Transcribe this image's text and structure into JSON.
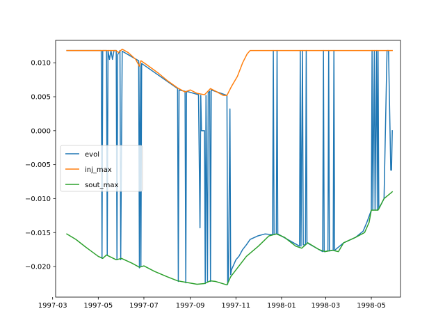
{
  "chart_data": {
    "type": "line",
    "title": "",
    "xlabel": "",
    "ylabel": "",
    "x_axis": "date",
    "xlim": [
      "1997-03-05",
      "1998-06-09"
    ],
    "ylim": [
      -0.0245,
      0.0133
    ],
    "grid": false,
    "legend_position": "center-left",
    "x_ticks": [
      "1997-03",
      "1997-05",
      "1997-07",
      "1997-09",
      "1997-11",
      "1998-01",
      "1998-03",
      "1998-05"
    ],
    "y_ticks": [
      0.01,
      0.005,
      0.0,
      -0.005,
      -0.01,
      -0.015,
      -0.02
    ],
    "y_tick_labels": [
      "0.010",
      "0.005",
      "0.000",
      "−0.005",
      "−0.010",
      "−0.015",
      "−0.020"
    ],
    "series": [
      {
        "name": "evol",
        "color": "#1f77b4",
        "points": [
          [
            "1997-03-20",
            0.0118
          ],
          [
            "1997-05-05",
            0.0118
          ],
          [
            "1997-05-06",
            -0.0188
          ],
          [
            "1997-05-07",
            0.0118
          ],
          [
            "1997-05-12",
            0.0118
          ],
          [
            "1997-05-13",
            -0.0183
          ],
          [
            "1997-05-14",
            0.0118
          ],
          [
            "1997-05-16",
            0.0105
          ],
          [
            "1997-05-18",
            0.0118
          ],
          [
            "1997-05-20",
            0.0105
          ],
          [
            "1997-05-22",
            0.0118
          ],
          [
            "1997-05-25",
            0.0118
          ],
          [
            "1997-05-26",
            -0.019
          ],
          [
            "1997-05-27",
            0.0112
          ],
          [
            "1997-05-30",
            0.0118
          ],
          [
            "1997-05-31",
            -0.019
          ],
          [
            "1997-06-02",
            0.0117
          ],
          [
            "1997-06-24",
            0.0103
          ],
          [
            "1997-06-25",
            -0.0202
          ],
          [
            "1997-06-26",
            0.01
          ],
          [
            "1997-06-27",
            -0.02
          ],
          [
            "1997-06-28",
            0.0099
          ],
          [
            "1997-08-15",
            0.0062
          ],
          [
            "1997-08-16",
            -0.0222
          ],
          [
            "1997-08-17",
            0.006
          ],
          [
            "1997-08-25",
            0.0058
          ],
          [
            "1997-08-26",
            -0.0224
          ],
          [
            "1997-08-27",
            0.0058
          ],
          [
            "1997-09-12",
            0.0053
          ],
          [
            "1997-09-14",
            -0.0143
          ],
          [
            "1997-09-15",
            0.0052
          ],
          [
            "1997-09-16",
            0.0
          ],
          [
            "1997-09-20",
            0.0
          ],
          [
            "1997-09-21",
            -0.0225
          ],
          [
            "1997-09-22",
            0.0052
          ],
          [
            "1997-09-24",
            -0.0222
          ],
          [
            "1997-09-25",
            0.0056
          ],
          [
            "1997-09-27",
            0.0058
          ],
          [
            "1997-09-28",
            -0.0222
          ],
          [
            "1997-09-29",
            0.006
          ],
          [
            "1997-10-20",
            0.0052
          ],
          [
            "1997-10-21",
            -0.0226
          ],
          [
            "1997-10-22",
            -0.0215
          ],
          [
            "1997-10-24",
            0.0032
          ],
          [
            "1997-10-25",
            -0.0212
          ],
          [
            "1997-10-26",
            -0.0205
          ],
          [
            "1997-11-01",
            -0.019
          ],
          [
            "1997-11-05",
            -0.0185
          ],
          [
            "1997-11-10",
            -0.0175
          ],
          [
            "1997-11-15",
            -0.0168
          ],
          [
            "1997-11-20",
            -0.016
          ],
          [
            "1997-11-30",
            -0.0155
          ],
          [
            "1997-12-10",
            -0.0152
          ],
          [
            "1997-12-20",
            -0.0153
          ],
          [
            "1997-12-21",
            0.0118
          ],
          [
            "1997-12-22",
            -0.0153
          ],
          [
            "1997-12-25",
            -0.0152
          ],
          [
            "1997-12-26",
            0.0118
          ],
          [
            "1997-12-27",
            -0.0152
          ],
          [
            "1998-01-25",
            -0.017
          ],
          [
            "1998-01-26",
            0.0118
          ],
          [
            "1998-01-27",
            -0.017
          ],
          [
            "1998-01-29",
            0.0118
          ],
          [
            "1998-01-30",
            -0.0168
          ],
          [
            "1998-02-02",
            -0.0168
          ],
          [
            "1998-02-03",
            0.0118
          ],
          [
            "1998-02-04",
            -0.0165
          ],
          [
            "1998-02-25",
            -0.0178
          ],
          [
            "1998-02-26",
            0.0118
          ],
          [
            "1998-02-27",
            -0.0178
          ],
          [
            "1998-03-04",
            -0.0177
          ],
          [
            "1998-03-05",
            0.0118
          ],
          [
            "1998-03-06",
            -0.0177
          ],
          [
            "1998-03-11",
            -0.0176
          ],
          [
            "1998-03-12",
            0.0118
          ],
          [
            "1998-03-13",
            -0.0176
          ],
          [
            "1998-03-25",
            -0.0165
          ],
          [
            "1998-04-10",
            -0.0157
          ],
          [
            "1998-04-20",
            -0.0148
          ],
          [
            "1998-04-25",
            -0.0135
          ],
          [
            "1998-05-01",
            -0.0117
          ],
          [
            "1998-05-02",
            0.0118
          ],
          [
            "1998-05-03",
            -0.0117
          ],
          [
            "1998-05-05",
            0.0118
          ],
          [
            "1998-05-06",
            -0.0117
          ],
          [
            "1998-05-08",
            0.0118
          ],
          [
            "1998-05-09",
            -0.0117
          ],
          [
            "1998-05-10",
            0.0118
          ],
          [
            "1998-05-11",
            -0.0115
          ],
          [
            "1998-05-18",
            -0.01
          ],
          [
            "1998-05-22",
            0.0118
          ],
          [
            "1998-05-24",
            0.0118
          ],
          [
            "1998-05-27",
            -0.0058
          ],
          [
            "1998-05-28",
            -0.0058
          ],
          [
            "1998-05-29",
            0.0
          ]
        ]
      },
      {
        "name": "inj_max",
        "color": "#ff7f0e",
        "points": [
          [
            "1997-03-20",
            0.0118
          ],
          [
            "1997-05-25",
            0.0118
          ],
          [
            "1997-05-28",
            0.0115
          ],
          [
            "1997-06-02",
            0.012
          ],
          [
            "1997-06-10",
            0.0115
          ],
          [
            "1997-06-20",
            0.0105
          ],
          [
            "1997-06-25",
            0.0095
          ],
          [
            "1997-06-27",
            0.0103
          ],
          [
            "1997-07-05",
            0.0097
          ],
          [
            "1997-07-20",
            0.0085
          ],
          [
            "1997-08-01",
            0.0074
          ],
          [
            "1997-08-15",
            0.0063
          ],
          [
            "1997-08-25",
            0.0057
          ],
          [
            "1997-09-01",
            0.006
          ],
          [
            "1997-09-10",
            0.0055
          ],
          [
            "1997-09-20",
            0.0053
          ],
          [
            "1997-09-28",
            0.0062
          ],
          [
            "1997-10-05",
            0.0058
          ],
          [
            "1997-10-15",
            0.0052
          ],
          [
            "1997-10-20",
            0.0052
          ],
          [
            "1997-10-26",
            0.0065
          ],
          [
            "1997-11-03",
            0.008
          ],
          [
            "1997-11-10",
            0.01
          ],
          [
            "1997-11-16",
            0.0113
          ],
          [
            "1997-11-20",
            0.0118
          ],
          [
            "1998-05-29",
            0.0118
          ]
        ]
      },
      {
        "name": "sout_max",
        "color": "#2ca02c",
        "points": [
          [
            "1997-03-20",
            -0.0152
          ],
          [
            "1997-04-01",
            -0.016
          ],
          [
            "1997-04-15",
            -0.0172
          ],
          [
            "1997-05-01",
            -0.0185
          ],
          [
            "1997-05-07",
            -0.0188
          ],
          [
            "1997-05-12",
            -0.0183
          ],
          [
            "1997-05-25",
            -0.019
          ],
          [
            "1997-06-01",
            -0.0188
          ],
          [
            "1997-06-15",
            -0.0195
          ],
          [
            "1997-06-25",
            -0.0201
          ],
          [
            "1997-07-01",
            -0.0199
          ],
          [
            "1997-07-15",
            -0.0207
          ],
          [
            "1997-08-01",
            -0.0215
          ],
          [
            "1997-08-15",
            -0.0221
          ],
          [
            "1997-08-25",
            -0.0223
          ],
          [
            "1997-09-10",
            -0.0226
          ],
          [
            "1997-09-20",
            -0.0225
          ],
          [
            "1997-09-28",
            -0.0221
          ],
          [
            "1997-10-05",
            -0.0222
          ],
          [
            "1997-10-20",
            -0.0227
          ],
          [
            "1997-10-25",
            -0.0215
          ],
          [
            "1997-11-01",
            -0.0205
          ],
          [
            "1997-11-15",
            -0.0185
          ],
          [
            "1997-12-01",
            -0.017
          ],
          [
            "1997-12-15",
            -0.0155
          ],
          [
            "1997-12-25",
            -0.0152
          ],
          [
            "1998-01-05",
            -0.0157
          ],
          [
            "1998-01-20",
            -0.017
          ],
          [
            "1998-01-28",
            -0.0173
          ],
          [
            "1998-02-05",
            -0.0165
          ],
          [
            "1998-02-20",
            -0.0175
          ],
          [
            "1998-02-28",
            -0.0178
          ],
          [
            "1998-03-10",
            -0.0176
          ],
          [
            "1998-03-18",
            -0.0178
          ],
          [
            "1998-03-25",
            -0.0165
          ],
          [
            "1998-04-10",
            -0.0157
          ],
          [
            "1998-04-22",
            -0.015
          ],
          [
            "1998-04-28",
            -0.0135
          ],
          [
            "1998-05-01",
            -0.0117
          ],
          [
            "1998-05-10",
            -0.0117
          ],
          [
            "1998-05-18",
            -0.01
          ],
          [
            "1998-05-29",
            -0.009
          ]
        ]
      }
    ]
  }
}
